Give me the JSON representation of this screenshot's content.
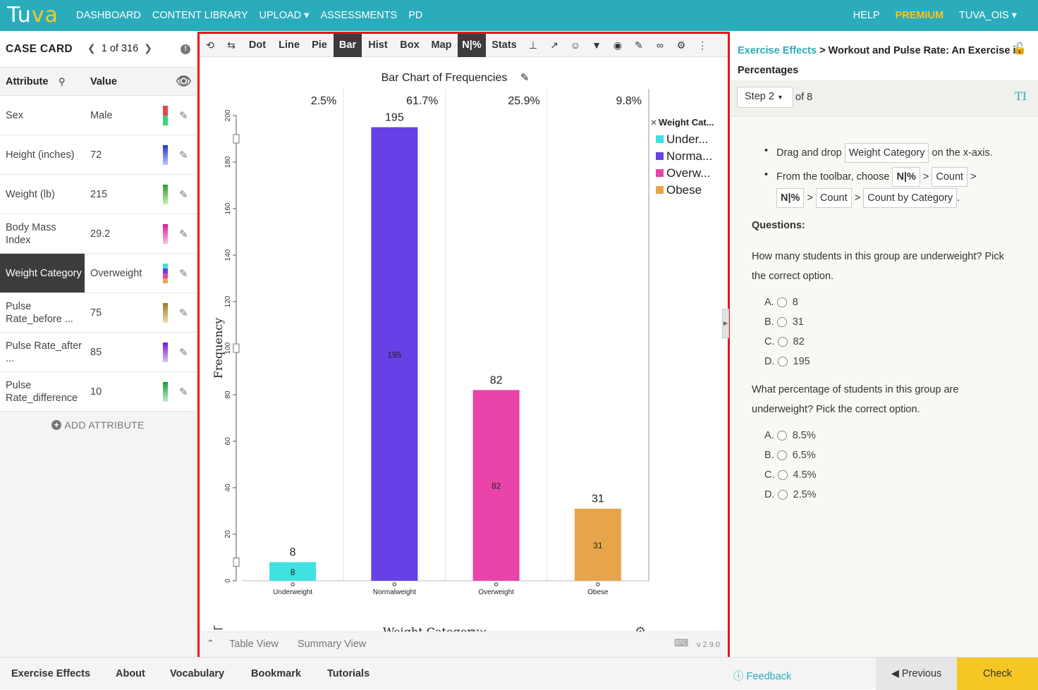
{
  "nav": {
    "logo_left": "Tu",
    "logo_right": "va",
    "links": [
      "DASHBOARD",
      "CONTENT LIBRARY",
      "UPLOAD ▾",
      "ASSESSMENTS",
      "PD"
    ],
    "help": "HELP",
    "premium": "PREMIUM",
    "user": "TUVA_OIS ▾"
  },
  "case_card": {
    "title": "CASE CARD",
    "position": "1 of 316",
    "col_attribute": "Attribute",
    "col_value": "Value",
    "rows": [
      {
        "attribute": "Sex",
        "value": "Male"
      },
      {
        "attribute": "Height (inches)",
        "value": "72"
      },
      {
        "attribute": "Weight (lb)",
        "value": "215"
      },
      {
        "attribute": "Body Mass Index",
        "value": "29.2"
      },
      {
        "attribute": "Weight Category",
        "value": "Overweight"
      },
      {
        "attribute": "Pulse Rate_before ...",
        "value": "75"
      },
      {
        "attribute": "Pulse Rate_after ...",
        "value": "85"
      },
      {
        "attribute": "Pulse Rate_difference",
        "value": "10"
      }
    ],
    "add_attribute": "ADD ATTRIBUTE"
  },
  "toolbar": {
    "buttons": [
      "Dot",
      "Line",
      "Pie",
      "Bar",
      "Hist",
      "Box",
      "Map",
      "N|%",
      "Stats"
    ],
    "active": "Bar"
  },
  "chart_data": {
    "type": "bar",
    "title": "Bar Chart of Frequencies",
    "xlabel": "Weight Category",
    "ylabel": "Frequency",
    "categories": [
      "Underweight",
      "Normalweight",
      "Overweight",
      "Obese"
    ],
    "values": [
      8,
      195,
      82,
      31
    ],
    "percents": [
      "2.5%",
      "61.7%",
      "25.9%",
      "9.8%"
    ],
    "ylim": [
      0,
      200
    ],
    "yticks": [
      0,
      20,
      40,
      60,
      80,
      100,
      120,
      140,
      160,
      180,
      200
    ],
    "colors": [
      "#40e0e3",
      "#6541e6",
      "#e844a9",
      "#e7a54b"
    ],
    "legend_title": "Weight Cat...",
    "legend": [
      "Under...",
      "Norma...",
      "Overw...",
      "Obese"
    ],
    "legend_position": "right"
  },
  "bottom": {
    "table_view": "Table View",
    "summary_view": "Summary View",
    "version": "v 2.9.0"
  },
  "right_panel": {
    "crumb": "Exercise Effects",
    "title": "Workout and Pulse Rate: An Exercise in Percentages",
    "step": "Step 2",
    "of": "of 8",
    "instr1_pre": "Drag and drop",
    "instr1_box": "Weight Category",
    "instr1_post": "on the x-axis.",
    "instr2_pre": "From the toolbar, choose",
    "nbox": "N|%",
    "count": "Count",
    "count_by_cat": "Count by Category",
    "questions": "Questions:",
    "q1": "How many students in this group are underweight? Pick the correct option.",
    "q1_options": [
      [
        "A.",
        "8"
      ],
      [
        "B.",
        "31"
      ],
      [
        "C.",
        "82"
      ],
      [
        "D.",
        "195"
      ]
    ],
    "q2": "What percentage of students in this group are underweight? Pick the correct option.",
    "q2_options": [
      [
        "A.",
        "8.5%"
      ],
      [
        "B.",
        "6.5%"
      ],
      [
        "C.",
        "4.5%"
      ],
      [
        "D.",
        "2.5%"
      ]
    ]
  },
  "footer": {
    "links": [
      "Exercise Effects",
      "About",
      "Vocabulary",
      "Bookmark",
      "Tutorials"
    ],
    "feedback": "Feedback",
    "previous": "Previous",
    "check": "Check"
  }
}
